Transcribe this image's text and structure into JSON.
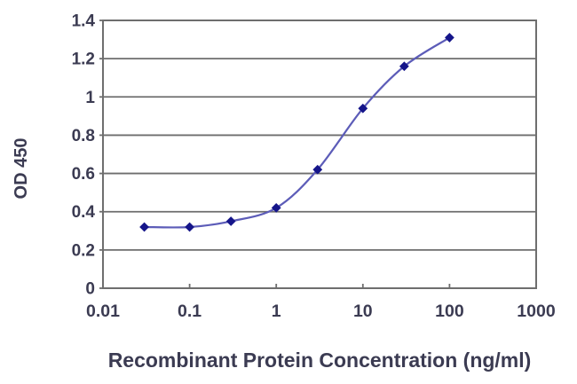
{
  "chart_data": {
    "type": "line",
    "title": "",
    "xlabel": "Recombinant Protein Concentration (ng/ml)",
    "ylabel": "OD 450",
    "x_scale": "log",
    "xlim": [
      0.01,
      1000
    ],
    "ylim": [
      0,
      1.4
    ],
    "x_ticks": [
      0.01,
      0.1,
      1,
      10,
      100,
      1000
    ],
    "x_tick_labels": [
      "0.01",
      "0.1",
      "1",
      "10",
      "100",
      "1000"
    ],
    "y_ticks": [
      0,
      0.2,
      0.4,
      0.6,
      0.8,
      1,
      1.2,
      1.4
    ],
    "y_tick_labels": [
      "0",
      "0.2",
      "0.4",
      "0.6",
      "0.8",
      "1",
      "1.2",
      "1.4"
    ],
    "grid": "horizontal",
    "legend": "none",
    "series": [
      {
        "name": "OD 450",
        "x": [
          0.03,
          0.1,
          0.3,
          1,
          3,
          10,
          30,
          100
        ],
        "y": [
          0.32,
          0.32,
          0.35,
          0.42,
          0.62,
          0.94,
          1.16,
          1.31
        ],
        "marker": "diamond"
      }
    ],
    "colors": {
      "line": "#5c5cb8",
      "marker": "#15158a",
      "gridline": "#6e6e6e",
      "axis_border": "#6e6e6e",
      "tick_text": "#3b3b52",
      "axis_title_text": "#3b3b52",
      "plot_background": "#ffffff"
    }
  }
}
